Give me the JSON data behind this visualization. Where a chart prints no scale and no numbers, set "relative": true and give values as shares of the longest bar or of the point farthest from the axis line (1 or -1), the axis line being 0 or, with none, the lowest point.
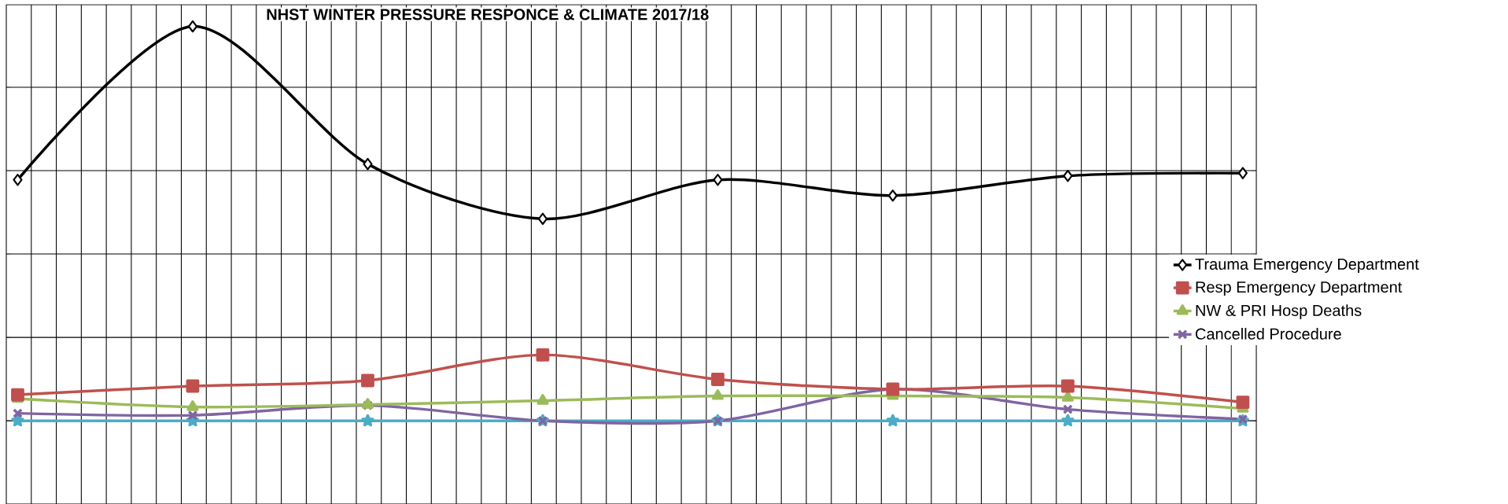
{
  "chart_data": {
    "type": "line",
    "title": "NHST WINTER PRESSURE RESPONCE & CLIMATE 2017/18",
    "categories": [
      null,
      null,
      null,
      null,
      null,
      null,
      null,
      null
    ],
    "relative": true,
    "grid": true,
    "legend": "right",
    "series": [
      {
        "name": "Trauma Emergency Department",
        "color": "#000000",
        "marker": "diamond",
        "values": [
          0.611,
          1,
          0.651,
          0.512,
          0.611,
          0.571,
          0.621,
          0.628
        ]
      },
      {
        "name": "Resp Emergency Department",
        "color": "#c0504d",
        "marker": "square",
        "values": [
          0.066,
          0.088,
          0.102,
          0.167,
          0.105,
          0.08,
          0.088,
          0.047
        ]
      },
      {
        "name": "NW & PRI Hosp Deaths",
        "color": "#9bbb59",
        "marker": "triangle",
        "values": [
          0.056,
          0.035,
          0.041,
          0.051,
          0.063,
          0.063,
          0.059,
          0.031
        ]
      },
      {
        "name": "Cancelled Procedure",
        "color": "#8064a2",
        "marker": "cross",
        "values": [
          0.019,
          0.014,
          0.039,
          0,
          0,
          0.08,
          0.029,
          0.004
        ]
      },
      {
        "color": "#4bacc6",
        "marker": "star",
        "values": [
          0,
          0,
          0,
          0,
          0,
          0,
          0,
          0
        ]
      }
    ]
  }
}
